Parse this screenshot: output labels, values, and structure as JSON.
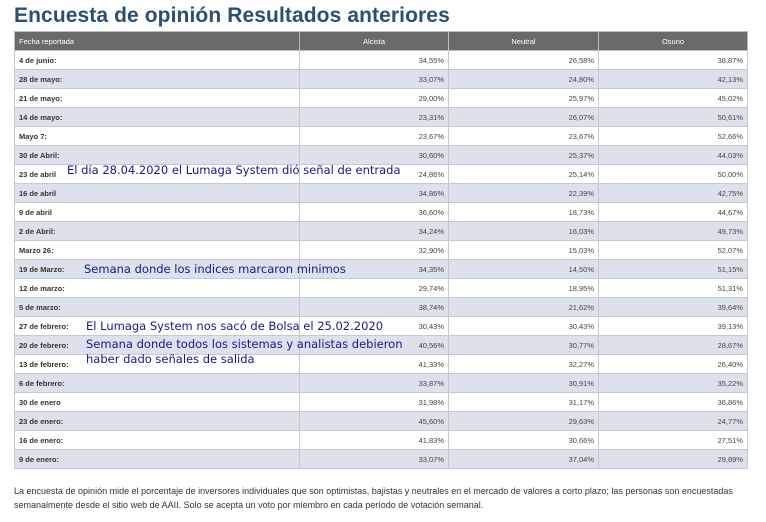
{
  "title": "Encuesta de opinión Resultados anteriores",
  "table": {
    "headers": [
      "Fecha reportada",
      "Alcista",
      "Neutral",
      "Osuno"
    ],
    "rows": [
      [
        "4 de junio:",
        "34,55%",
        "26,58%",
        "38,87%"
      ],
      [
        "28 de mayo:",
        "33,07%",
        "24,80%",
        "42,13%"
      ],
      [
        "21 de mayo:",
        "29,00%",
        "25,97%",
        "45,02%"
      ],
      [
        "14 de mayo:",
        "23,31%",
        "26,07%",
        "50,61%"
      ],
      [
        "Mayo 7:",
        "23,67%",
        "23,67%",
        "52,66%"
      ],
      [
        "30 de Abril:",
        "30,60%",
        "25,37%",
        "44,03%"
      ],
      [
        "23 de abril",
        "24,86%",
        "25,14%",
        "50,00%"
      ],
      [
        "16 de abril",
        "34,86%",
        "22,39%",
        "42,75%"
      ],
      [
        "9 de abril",
        "36,60%",
        "18,73%",
        "44,67%"
      ],
      [
        "2 de Abril:",
        "34,24%",
        "16,03%",
        "49,73%"
      ],
      [
        "Marzo 26:",
        "32,90%",
        "15,03%",
        "52,07%"
      ],
      [
        "19 de Marzo:",
        "34,35%",
        "14,50%",
        "51,15%"
      ],
      [
        "12 de marzo:",
        "29,74%",
        "18,95%",
        "51,31%"
      ],
      [
        "5 de marzo:",
        "38,74%",
        "21,62%",
        "39,64%"
      ],
      [
        "27 de febrero:",
        "30,43%",
        "30,43%",
        "39,13%"
      ],
      [
        "20 de febrero:",
        "40,56%",
        "30,77%",
        "28,67%"
      ],
      [
        "13 de febrero:",
        "41,33%",
        "32,27%",
        "26,40%"
      ],
      [
        "6 de febrero:",
        "33,87%",
        "30,91%",
        "35,22%"
      ],
      [
        "30 de enero",
        "31,98%",
        "31,17%",
        "36,86%"
      ],
      [
        "23 de enero:",
        "45,60%",
        "29,63%",
        "24,77%"
      ],
      [
        "16 de enero:",
        "41,83%",
        "30,66%",
        "27,51%"
      ],
      [
        "9 de enero:",
        "33,07%",
        "37,04%",
        "29,89%"
      ]
    ]
  },
  "annotations": {
    "entrada": "El día 28.04.2020 el Lumaga System dió señal de entrada",
    "minimos": "Semana donde los indices marcaron minimos",
    "salida_bolsa": "El Lumaga System nos sacó de Bolsa el 25.02.2020",
    "salida_line1": "Semana donde todos los sistemas y analistas debieron",
    "salida_line2": "haber dado señales de salida"
  },
  "footer": "La encuesta de opinión mide el porcentaje de inversores individuales que son optimistas, bajistas y neutrales en el mercado de valores a corto plazo; las personas son encuestadas semanalmente desde el sitio web de AAII. Solo se acepta un voto por miembro en cada período de votación semanal.",
  "colors": {
    "title": "#2b4f73",
    "header_bg": "#6a6a6a",
    "row_alt_bg": "#dde1eb",
    "annotation": "#14188e"
  }
}
